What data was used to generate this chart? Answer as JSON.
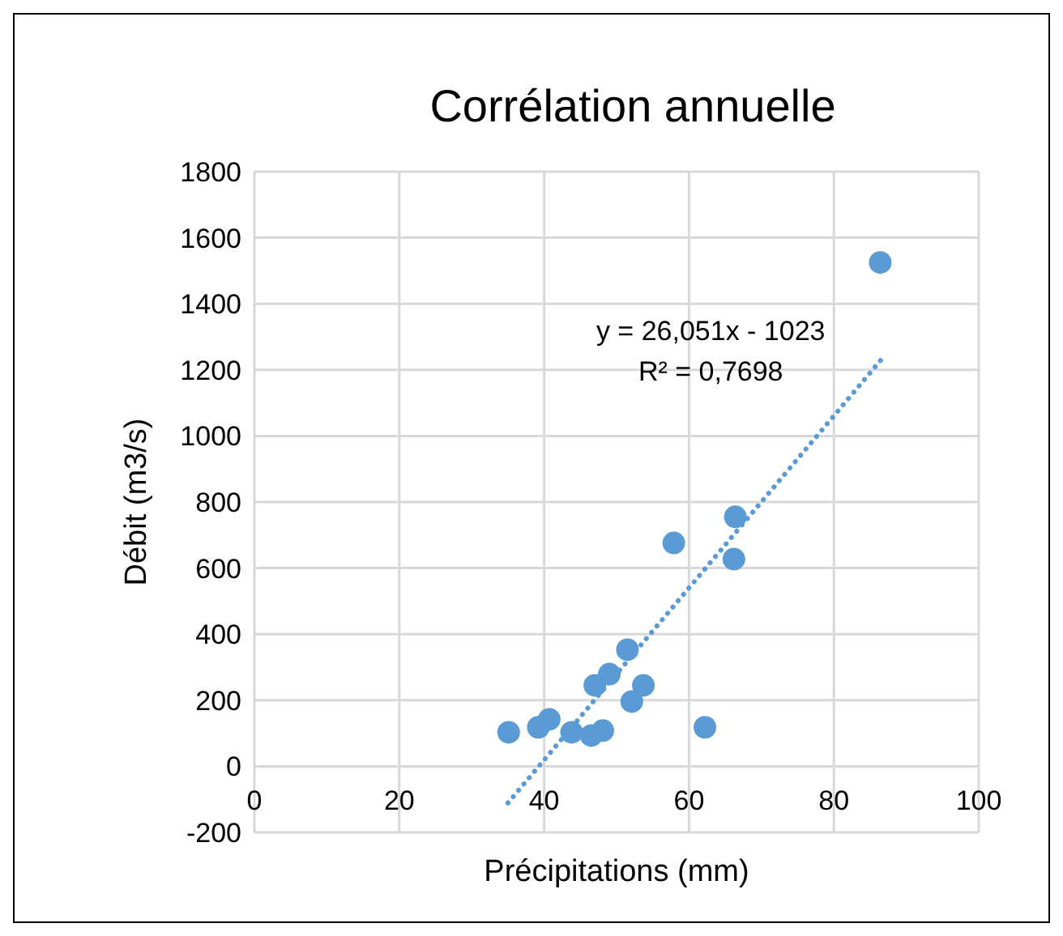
{
  "chart_data": {
    "type": "scatter",
    "title": "Corrélation annuelle",
    "xlabel": "Précipitations (mm)",
    "ylabel": "Débit (m3/s)",
    "xlim": [
      0,
      100
    ],
    "xticks": [
      0,
      20,
      40,
      60,
      80,
      100
    ],
    "ylim": [
      -200,
      1800
    ],
    "yticks": [
      -200,
      0,
      200,
      400,
      600,
      800,
      1000,
      1200,
      1400,
      1600,
      1800
    ],
    "grid": true,
    "marker": "circle",
    "series": [
      {
        "color": "#5b9bd5",
        "x": [
          35.1,
          39.2,
          40.7,
          43.8,
          46.5,
          48.1,
          47.0,
          49.0,
          51.5,
          52.1,
          53.7,
          57.9,
          62.2,
          66.2,
          66.4,
          86.4
        ],
        "values": [
          103,
          118,
          142,
          103,
          93,
          108,
          245,
          279,
          353,
          196,
          245,
          676,
          118,
          627,
          755,
          1525
        ]
      },
      {
        "type": "line",
        "color": "#5b9bd5",
        "line_style": "dotted",
        "marker": "none",
        "x": [
          35,
          87
        ],
        "values": [
          -111,
          1243
        ]
      }
    ],
    "annotations": [
      "y = 26,051x - 1023",
      "R² = 0,7698"
    ]
  }
}
